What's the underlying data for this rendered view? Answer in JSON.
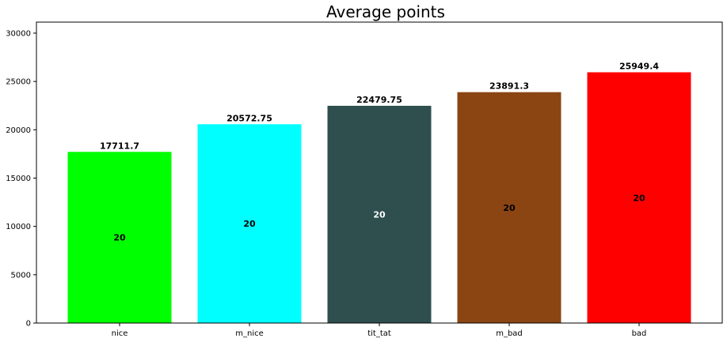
{
  "chart_data": {
    "type": "bar",
    "title": "Average points",
    "xlabel": "",
    "ylabel": "",
    "categories": [
      "nice",
      "m_nice",
      "tit_tat",
      "m_bad",
      "bad"
    ],
    "values": [
      17711.7,
      20572.75,
      22479.75,
      23891.3,
      25949.4
    ],
    "value_labels": [
      "17711.7",
      "20572.75",
      "22479.75",
      "23891.3",
      "25949.4"
    ],
    "inner_labels": [
      "20",
      "20",
      "20",
      "20",
      "20"
    ],
    "colors": [
      "#00ff00",
      "#00ffff",
      "#2f4f4f",
      "#8b4513",
      "#ff0000"
    ],
    "inner_label_colors": [
      "#000000",
      "#000000",
      "#ffffff",
      "#000000",
      "#000000"
    ],
    "ylim": [
      0,
      31139.28
    ],
    "yticks": [
      0,
      5000,
      10000,
      15000,
      20000,
      25000,
      30000
    ],
    "grid": false,
    "legend": "none"
  }
}
